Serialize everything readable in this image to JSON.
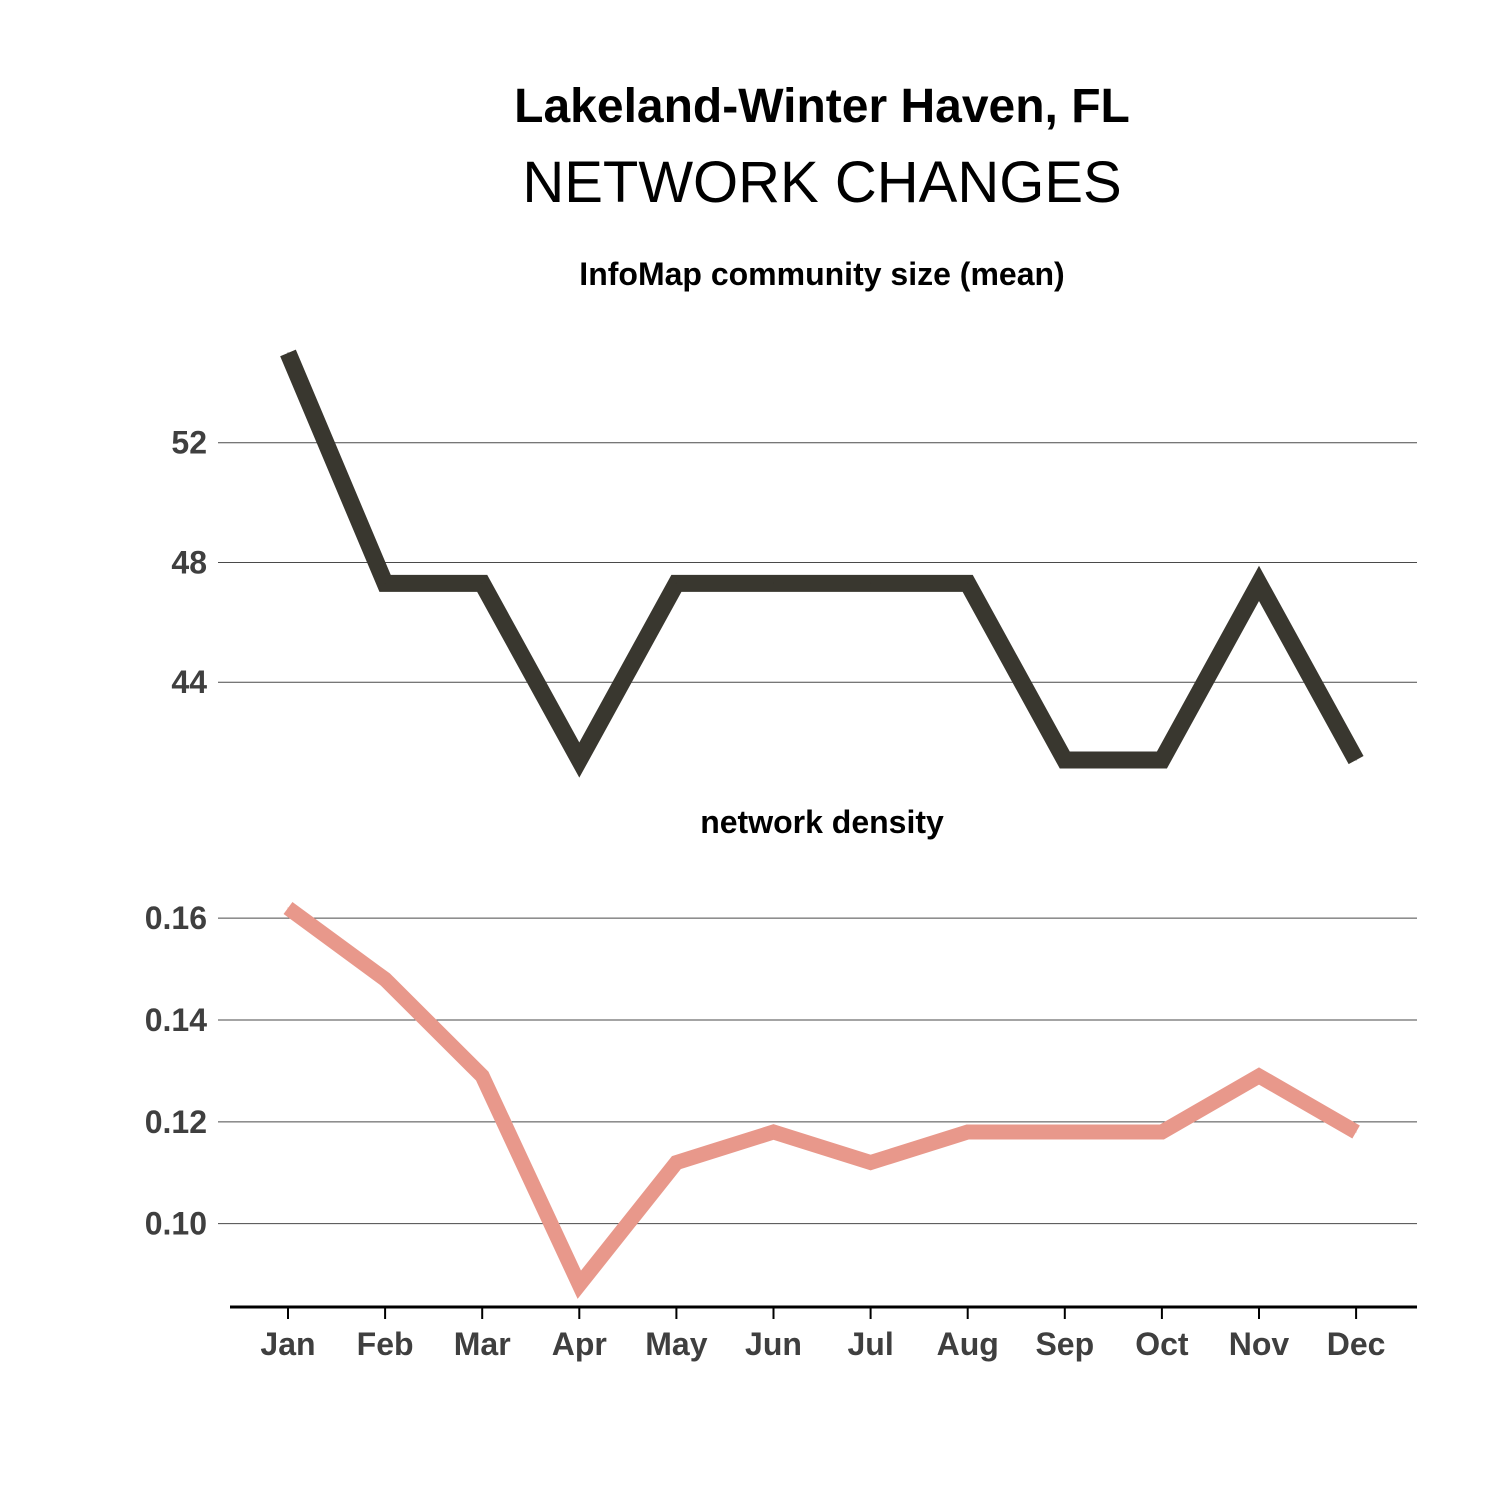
{
  "header": {
    "title": "Lakeland-Winter Haven, FL",
    "subtitle": "NETWORK CHANGES"
  },
  "chart_data": [
    {
      "type": "line",
      "title": "InfoMap community size (mean)",
      "categories": [
        "Jan",
        "Feb",
        "Mar",
        "Apr",
        "May",
        "Jun",
        "Jul",
        "Aug",
        "Sep",
        "Oct",
        "Nov",
        "Dec"
      ],
      "values": [
        55.0,
        47.3,
        47.3,
        41.4,
        47.3,
        47.3,
        47.3,
        47.3,
        41.4,
        41.4,
        47.3,
        41.4
      ],
      "yticks": [
        44,
        48,
        52
      ],
      "ylim": [
        40.8,
        56.6
      ],
      "grid": true,
      "color": "#39372f"
    },
    {
      "type": "line",
      "title": "network density",
      "categories": [
        "Jan",
        "Feb",
        "Mar",
        "Apr",
        "May",
        "Jun",
        "Jul",
        "Aug",
        "Sep",
        "Oct",
        "Nov",
        "Dec"
      ],
      "values": [
        0.162,
        0.148,
        0.129,
        0.088,
        0.112,
        0.118,
        0.112,
        0.118,
        0.118,
        0.118,
        0.129,
        0.118
      ],
      "yticks": [
        "0.10",
        "0.12",
        "0.14",
        "0.16"
      ],
      "ylim": [
        0.085,
        0.173
      ],
      "grid": true,
      "color": "#e8988b"
    }
  ]
}
